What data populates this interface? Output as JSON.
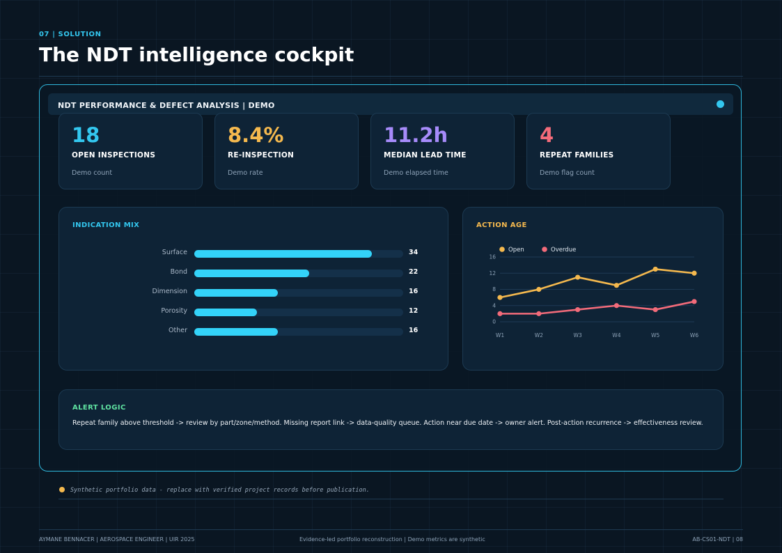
{
  "header": {
    "kicker": "07 | SOLUTION",
    "title": "The NDT intelligence cockpit"
  },
  "panel": {
    "title": "NDT PERFORMANCE & DEFECT ANALYSIS | DEMO",
    "status_dot_color": "#33c7ef"
  },
  "kpis": [
    {
      "value": "18",
      "label": "OPEN INSPECTIONS",
      "sub": "Demo count",
      "color": "#33c7ef"
    },
    {
      "value": "8.4%",
      "label": "RE-INSPECTION",
      "sub": "Demo rate",
      "color": "#f5b94e"
    },
    {
      "value": "11.2h",
      "label": "MEDIAN LEAD TIME",
      "sub": "Demo elapsed time",
      "color": "#a78bfa"
    },
    {
      "value": "4",
      "label": "REPEAT FAMILIES",
      "sub": "Demo flag count",
      "color": "#f36b7a"
    }
  ],
  "indication_mix": {
    "title": "INDICATION MIX"
  },
  "action_age": {
    "title": "ACTION AGE"
  },
  "alert": {
    "title": "ALERT LOGIC",
    "text": "Repeat family above threshold -> review by part/zone/method. Missing report link -> data-quality queue. Action near due date -> owner alert. Post-action recurrence -> effectiveness review."
  },
  "disclaimer": "Synthetic portfolio data - replace with verified project records before publication.",
  "footer": {
    "left": "AYMANE BENNACER | AEROSPACE ENGINEER | UIR 2025",
    "center": "Evidence-led portfolio reconstruction | Demo metrics are synthetic",
    "right": "AB-CS01-NDT | 08"
  },
  "chart_data": [
    {
      "type": "bar",
      "orientation": "horizontal",
      "categories": [
        "Surface",
        "Bond",
        "Dimension",
        "Porosity",
        "Other"
      ],
      "values": [
        34,
        22,
        16,
        12,
        16
      ],
      "xlim": [
        0,
        40
      ],
      "color": "#33d3f9"
    },
    {
      "type": "line",
      "x": [
        "W1",
        "W2",
        "W3",
        "W4",
        "W5",
        "W6"
      ],
      "series": [
        {
          "name": "Open",
          "values": [
            6,
            8,
            11,
            9,
            13,
            12
          ],
          "color": "#f5b94e"
        },
        {
          "name": "Overdue",
          "values": [
            2,
            2,
            3,
            4,
            3,
            5
          ],
          "color": "#f36b7a"
        }
      ],
      "yticks": [
        0,
        4,
        8,
        12,
        16
      ],
      "ylim": [
        0,
        16
      ],
      "grid": true,
      "legend": "top-left"
    }
  ]
}
